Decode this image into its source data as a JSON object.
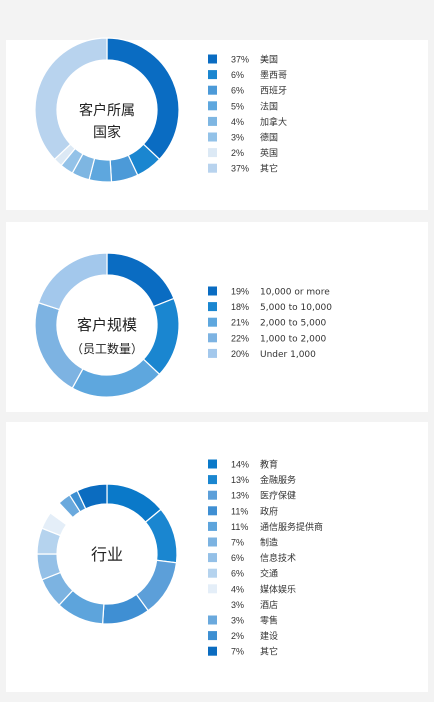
{
  "chart_data": [
    {
      "type": "pie",
      "variant": "donut",
      "center_label": [
        "客户所属",
        "国家"
      ],
      "legend_position": "right",
      "slices": [
        {
          "label": "美国",
          "pct_text": "37%",
          "value": 37,
          "color": "#0a6cc2"
        },
        {
          "label": "墨西哥",
          "pct_text": "6%",
          "value": 6,
          "color": "#1a86d0"
        },
        {
          "label": "西班牙",
          "pct_text": "6%",
          "value": 6,
          "color": "#4c9ad8"
        },
        {
          "label": "法国",
          "pct_text": "5%",
          "value": 5,
          "color": "#5ea7de"
        },
        {
          "label": "加拿大",
          "pct_text": "4%",
          "value": 4,
          "color": "#7eb6e2"
        },
        {
          "label": "德国",
          "pct_text": "3%",
          "value": 3,
          "color": "#93c2e8"
        },
        {
          "label": "英国",
          "pct_text": "2%",
          "value": 2,
          "color": "#dce9f5"
        },
        {
          "label": "其它",
          "pct_text": "37%",
          "value": 37,
          "color": "#b8d3ee"
        }
      ]
    },
    {
      "type": "pie",
      "variant": "donut",
      "center_label": [
        "客户规模",
        "（员工数量）"
      ],
      "legend_position": "right",
      "slices": [
        {
          "label": "10,000 or more",
          "pct_text": "19%",
          "value": 19,
          "color": "#0a6cc2"
        },
        {
          "label": "5,000 to 10,000",
          "pct_text": "18%",
          "value": 18,
          "color": "#1a86d0"
        },
        {
          "label": "2,000 to 5,000",
          "pct_text": "21%",
          "value": 21,
          "color": "#5ea7de"
        },
        {
          "label": "1,000 to 2,000",
          "pct_text": "22%",
          "value": 22,
          "color": "#7db3e2"
        },
        {
          "label": "Under 1,000",
          "pct_text": "20%",
          "value": 20,
          "color": "#a3c8ec"
        }
      ]
    },
    {
      "type": "pie",
      "variant": "donut",
      "center_label": [
        "行业"
      ],
      "legend_position": "right",
      "slices": [
        {
          "label": "教育",
          "pct_text": "14%",
          "value": 14,
          "color": "#0a79c9"
        },
        {
          "label": "金融服务",
          "pct_text": "13%",
          "value": 13,
          "color": "#1a86d0"
        },
        {
          "label": "医疗保健",
          "pct_text": "13%",
          "value": 13,
          "color": "#5c9fd9"
        },
        {
          "label": "政府",
          "pct_text": "11%",
          "value": 11,
          "color": "#3f8fd3"
        },
        {
          "label": "通信服务提供商",
          "pct_text": "11%",
          "value": 11,
          "color": "#5da4dc"
        },
        {
          "label": "制造",
          "pct_text": "7%",
          "value": 7,
          "color": "#7cb3e1"
        },
        {
          "label": "信息技术",
          "pct_text": "6%",
          "value": 6,
          "color": "#94c0e7"
        },
        {
          "label": "交通",
          "pct_text": "6%",
          "value": 6,
          "color": "#b5d3ee"
        },
        {
          "label": "媒体娱乐",
          "pct_text": "4%",
          "value": 4,
          "color": "#e4eef8"
        },
        {
          "label": "酒店",
          "pct_text": "3%",
          "value": 3,
          "color": "#ffffff"
        },
        {
          "label": "零售",
          "pct_text": "3%",
          "value": 3,
          "color": "#6aa9dd"
        },
        {
          "label": "建设",
          "pct_text": "2%",
          "value": 2,
          "color": "#3d8fd2"
        },
        {
          "label": "其它",
          "pct_text": "7%",
          "value": 7,
          "color": "#0b6cc0"
        }
      ]
    }
  ]
}
